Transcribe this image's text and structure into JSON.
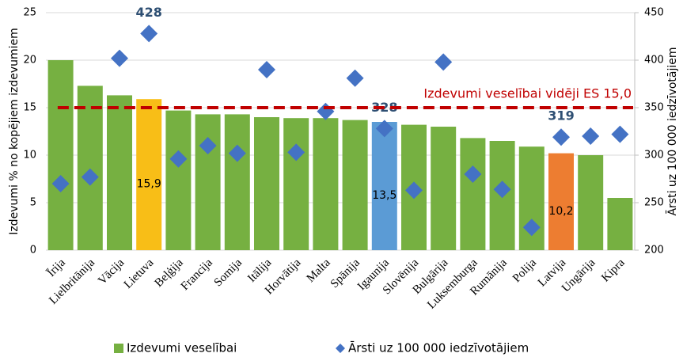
{
  "chart_data": {
    "type": "bar",
    "categories": [
      "Īrija",
      "Lielbritānija",
      "Vācija",
      "Lietuva",
      "Beļģija",
      "Francija",
      "Somija",
      "Itālija",
      "Horvātija",
      "Malta",
      "Spānija",
      "Igaunija",
      "Slovēnija",
      "Bulgārija",
      "Luksemburga",
      "Rumānija",
      "Polija",
      "Latvija",
      "Ungārija",
      "Kipra"
    ],
    "series": [
      {
        "name": "Izdevumi veselībai",
        "color": "#76b041",
        "colors": [
          "#76b041",
          "#76b041",
          "#76b041",
          "#f8be17",
          "#76b041",
          "#76b041",
          "#76b041",
          "#76b041",
          "#76b041",
          "#76b041",
          "#76b041",
          "#5b9bd5",
          "#76b041",
          "#76b041",
          "#76b041",
          "#76b041",
          "#76b041",
          "#ed7d31",
          "#76b041",
          "#76b041"
        ],
        "values": [
          20.0,
          17.3,
          16.3,
          15.9,
          14.7,
          14.3,
          14.3,
          14.0,
          13.9,
          13.9,
          13.7,
          13.5,
          13.2,
          13.0,
          11.8,
          11.5,
          10.9,
          10.2,
          10.0,
          5.5
        ],
        "value_labels": [
          null,
          null,
          null,
          "15,9",
          null,
          null,
          null,
          null,
          null,
          null,
          null,
          "13,5",
          null,
          null,
          null,
          null,
          null,
          "10,2",
          null,
          null
        ]
      },
      {
        "name": "Ārsti uz 100 000 iedzīvotājiem",
        "color": "#4472c4",
        "axis": "y2",
        "marker": "diamond",
        "values": [
          270,
          277,
          402,
          428,
          296,
          310,
          302,
          390,
          303,
          346,
          381,
          328,
          263,
          398,
          280,
          264,
          224,
          319,
          320,
          322
        ],
        "value_labels": [
          null,
          null,
          null,
          "428",
          null,
          null,
          null,
          null,
          null,
          null,
          null,
          "328",
          null,
          null,
          null,
          null,
          null,
          "319",
          null,
          null
        ]
      }
    ],
    "ylabel": "Izdevumi % no kopējiem izdevumiem",
    "y2label": "Ārsti uz 100 000 iedzīvotājiem",
    "ylim": [
      0,
      25
    ],
    "yticks": [
      0,
      5,
      10,
      15,
      20,
      25
    ],
    "y2lim": [
      200,
      450
    ],
    "y2ticks": [
      200,
      250,
      300,
      350,
      400,
      450
    ],
    "grid": true,
    "reference_line": {
      "value": 15.0,
      "label": "Izdevumi veselībai vidēji ES 15,0",
      "color": "#c00000"
    },
    "legend": "bottom"
  }
}
